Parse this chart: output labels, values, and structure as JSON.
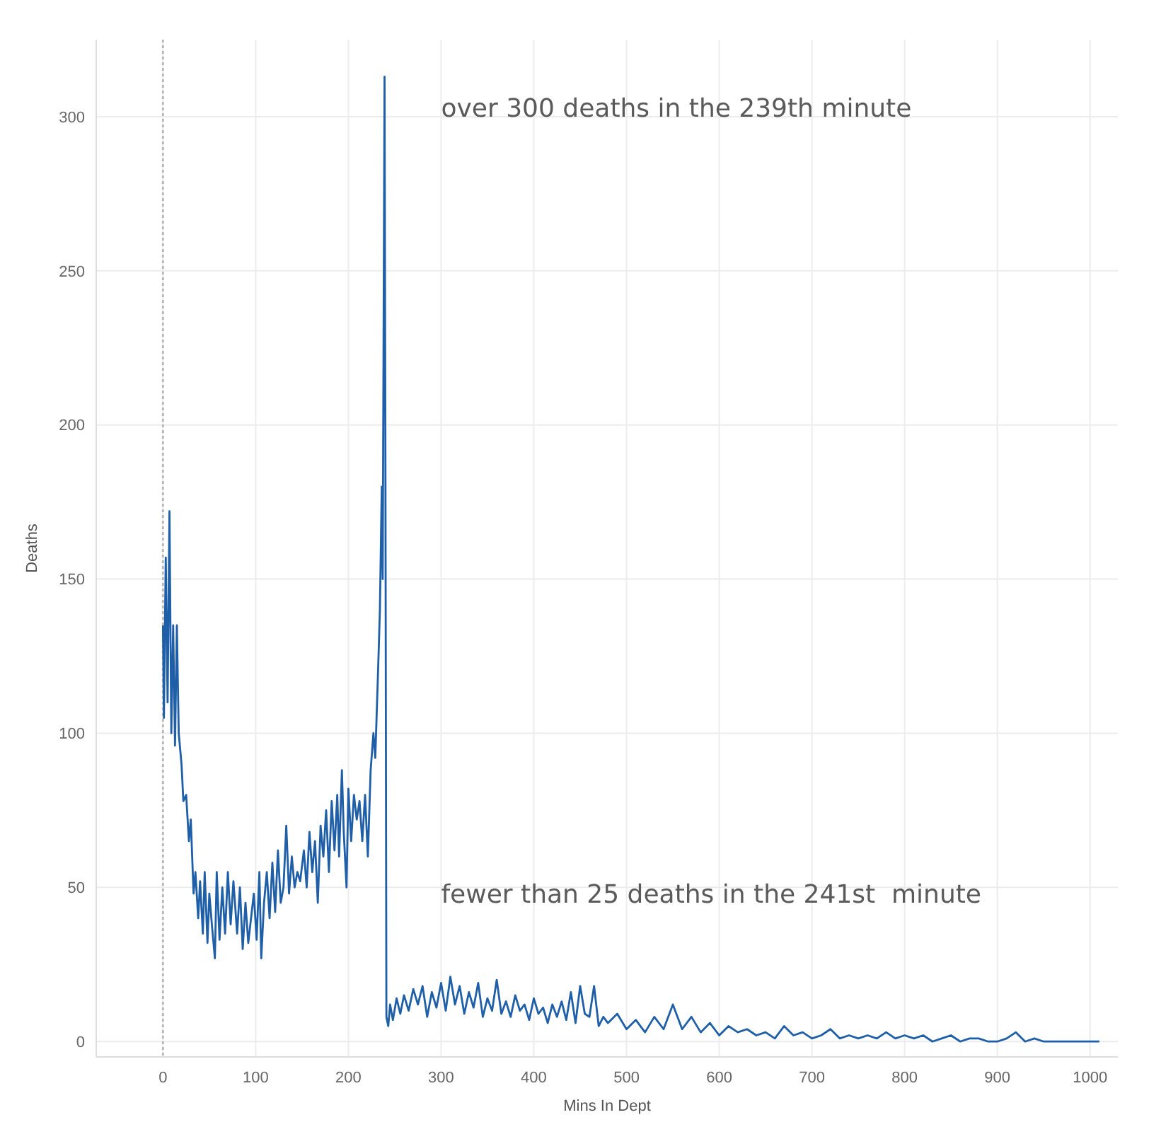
{
  "chart_data": {
    "type": "line",
    "xlabel": "Mins In Dept",
    "ylabel": "Deaths",
    "xlim": [
      -72,
      1030
    ],
    "ylim": [
      -5,
      325
    ],
    "xticks": [
      0,
      100,
      200,
      300,
      400,
      500,
      600,
      700,
      800,
      900,
      1000
    ],
    "yticks": [
      0,
      50,
      100,
      150,
      200,
      250,
      300
    ],
    "grid": true,
    "line_style": "solid",
    "marker": "none",
    "ref_lines": [
      {
        "axis": "x",
        "value": 0,
        "line_style": "dotted",
        "color": "#bbbbbb"
      }
    ],
    "annotations": [
      "over 300 deaths in the 239th minute",
      "fewer than 25 deaths in the 241st  minute"
    ],
    "series": [
      {
        "color": "#1f5fa8",
        "x": [
          0,
          1,
          3,
          5,
          7,
          9,
          11,
          13,
          15,
          17,
          20,
          22,
          25,
          28,
          30,
          33,
          35,
          38,
          40,
          43,
          45,
          48,
          50,
          53,
          56,
          58,
          61,
          64,
          67,
          70,
          73,
          76,
          80,
          83,
          86,
          89,
          92,
          95,
          98,
          101,
          104,
          106,
          109,
          112,
          115,
          118,
          121,
          124,
          127,
          130,
          133,
          136,
          139,
          142,
          145,
          148,
          152,
          155,
          158,
          161,
          164,
          167,
          170,
          173,
          176,
          179,
          182,
          185,
          188,
          190,
          193,
          195,
          198,
          200,
          203,
          206,
          209,
          212,
          215,
          218,
          221,
          224,
          227,
          229,
          232,
          234,
          236,
          237,
          239,
          240,
          241,
          243,
          245,
          248,
          252,
          256,
          260,
          265,
          270,
          275,
          280,
          285,
          290,
          295,
          300,
          305,
          310,
          315,
          320,
          325,
          330,
          335,
          340,
          345,
          350,
          355,
          360,
          365,
          370,
          375,
          380,
          385,
          390,
          395,
          400,
          405,
          410,
          415,
          420,
          425,
          430,
          435,
          440,
          445,
          450,
          455,
          460,
          465,
          470,
          475,
          480,
          490,
          500,
          510,
          520,
          530,
          540,
          550,
          560,
          570,
          580,
          590,
          600,
          610,
          620,
          630,
          640,
          650,
          660,
          670,
          680,
          690,
          700,
          710,
          720,
          730,
          740,
          750,
          760,
          770,
          780,
          790,
          800,
          810,
          820,
          830,
          840,
          850,
          860,
          870,
          880,
          890,
          900,
          910,
          920,
          930,
          940,
          950,
          960,
          970,
          980,
          990,
          1000,
          1010
        ],
        "values": [
          135,
          105,
          157,
          110,
          172,
          100,
          135,
          96,
          135,
          100,
          90,
          78,
          80,
          65,
          72,
          48,
          55,
          40,
          52,
          35,
          55,
          32,
          48,
          37,
          27,
          55,
          33,
          50,
          35,
          55,
          38,
          52,
          35,
          50,
          30,
          45,
          32,
          40,
          48,
          33,
          55,
          27,
          45,
          55,
          40,
          58,
          42,
          62,
          45,
          50,
          70,
          48,
          60,
          50,
          55,
          52,
          62,
          50,
          68,
          55,
          65,
          45,
          70,
          60,
          75,
          55,
          78,
          62,
          80,
          60,
          88,
          68,
          50,
          82,
          65,
          80,
          72,
          78,
          65,
          80,
          60,
          88,
          100,
          92,
          120,
          140,
          180,
          150,
          313,
          180,
          8,
          5,
          12,
          7,
          14,
          9,
          15,
          10,
          17,
          12,
          18,
          8,
          16,
          11,
          19,
          10,
          21,
          12,
          18,
          9,
          16,
          11,
          19,
          8,
          14,
          10,
          20,
          9,
          13,
          8,
          15,
          10,
          12,
          7,
          14,
          9,
          11,
          6,
          12,
          8,
          13,
          7,
          16,
          6,
          18,
          9,
          8,
          18,
          5,
          8,
          6,
          9,
          4,
          7,
          3,
          8,
          4,
          12,
          4,
          8,
          3,
          6,
          2,
          5,
          3,
          4,
          2,
          3,
          1,
          5,
          2,
          3,
          1,
          2,
          4,
          1,
          2,
          1,
          2,
          1,
          3,
          1,
          2,
          1,
          2,
          0,
          1,
          2,
          0,
          1,
          1,
          0,
          0,
          1,
          3,
          0,
          1,
          0,
          0,
          0,
          0,
          0,
          0,
          0
        ]
      }
    ]
  }
}
